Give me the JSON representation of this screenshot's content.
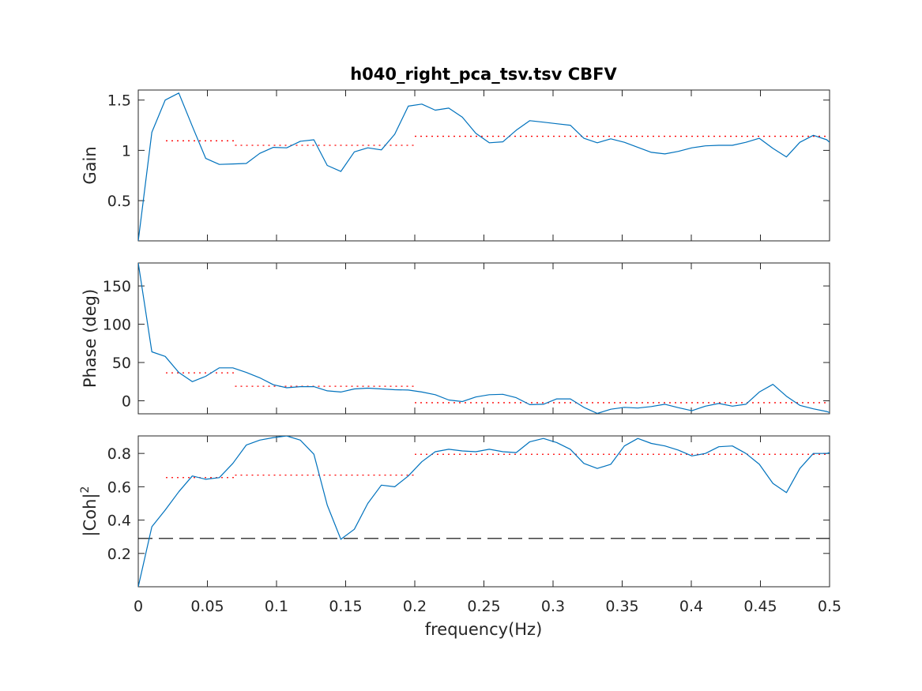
{
  "figure": {
    "title": "h040_right_pca_tsv.tsv CBFV",
    "xlabel": "frequency(Hz)",
    "x_ticks": [
      "0",
      "0.05",
      "0.1",
      "0.15",
      "0.2",
      "0.25",
      "0.3",
      "0.35",
      "0.4",
      "0.45",
      "0.5"
    ],
    "colors": {
      "series": "#0072BD",
      "band_mean": "#FF0000",
      "threshold": "#000000"
    }
  },
  "chart_data": [
    {
      "type": "line",
      "name": "gain",
      "ylabel": "Gain",
      "xlim": [
        0,
        0.5
      ],
      "ylim": [
        0.1,
        1.6
      ],
      "y_ticks": [
        0.5,
        1,
        1.5
      ],
      "y_tick_labels": [
        "0.5",
        "1",
        "1.5"
      ],
      "x": [
        0,
        0.0098,
        0.0195,
        0.0293,
        0.0391,
        0.0488,
        0.0586,
        0.0684,
        0.0781,
        0.0879,
        0.0977,
        0.1074,
        0.1172,
        0.127,
        0.1367,
        0.1465,
        0.1563,
        0.166,
        0.1758,
        0.1855,
        0.1953,
        0.2051,
        0.2148,
        0.2246,
        0.2344,
        0.2441,
        0.2539,
        0.2637,
        0.2734,
        0.2832,
        0.293,
        0.3027,
        0.3125,
        0.3223,
        0.332,
        0.3418,
        0.3516,
        0.3613,
        0.3711,
        0.3809,
        0.3906,
        0.4004,
        0.4102,
        0.4199,
        0.4297,
        0.4395,
        0.4492,
        0.459,
        0.4688,
        0.4785,
        0.4883,
        0.498,
        0.5
      ],
      "y": [
        0.1,
        1.18,
        1.5,
        1.57,
        1.24,
        0.92,
        0.86,
        0.865,
        0.87,
        0.97,
        1.03,
        1.025,
        1.09,
        1.105,
        0.85,
        0.79,
        0.985,
        1.025,
        1.005,
        1.16,
        1.44,
        1.46,
        1.4,
        1.42,
        1.33,
        1.17,
        1.075,
        1.085,
        1.2,
        1.295,
        1.28,
        1.265,
        1.25,
        1.12,
        1.075,
        1.115,
        1.08,
        1.03,
        0.98,
        0.965,
        0.99,
        1.025,
        1.045,
        1.05,
        1.05,
        1.08,
        1.12,
        1.02,
        0.935,
        1.08,
        1.15,
        1.105,
        1.08
      ],
      "bands": [
        {
          "x": [
            0.02,
            0.07
          ],
          "value": 1.095
        },
        {
          "x": [
            0.07,
            0.2
          ],
          "value": 1.05
        },
        {
          "x": [
            0.2,
            0.5
          ],
          "value": 1.14
        }
      ]
    },
    {
      "type": "line",
      "name": "phase",
      "ylabel": "Phase (deg)",
      "xlim": [
        0,
        0.5
      ],
      "ylim": [
        -17,
        180
      ],
      "y_ticks": [
        0,
        50,
        100,
        150
      ],
      "y_tick_labels": [
        "0",
        "50",
        "100",
        "150"
      ],
      "x": [
        0,
        0.0098,
        0.0195,
        0.0293,
        0.0391,
        0.0488,
        0.0586,
        0.0684,
        0.0781,
        0.0879,
        0.0977,
        0.1074,
        0.1172,
        0.127,
        0.1367,
        0.1465,
        0.1563,
        0.166,
        0.1758,
        0.1855,
        0.1953,
        0.2051,
        0.2148,
        0.2246,
        0.2344,
        0.2441,
        0.2539,
        0.2637,
        0.2734,
        0.2832,
        0.293,
        0.3027,
        0.3125,
        0.3223,
        0.332,
        0.3418,
        0.3516,
        0.3613,
        0.3711,
        0.3809,
        0.3906,
        0.4004,
        0.4102,
        0.4199,
        0.4297,
        0.4395,
        0.4492,
        0.459,
        0.4688,
        0.4785,
        0.4883,
        0.498,
        0.5
      ],
      "y": [
        180,
        64,
        58,
        37,
        25,
        32,
        43,
        43,
        37,
        30,
        21,
        17,
        18.5,
        18.5,
        13,
        11.5,
        15.5,
        16.5,
        15.5,
        14.5,
        14,
        11.5,
        8,
        1,
        -1,
        5,
        8,
        8.5,
        4,
        -5,
        -4.5,
        2.5,
        2.5,
        -8.5,
        -16.5,
        -11,
        -8.5,
        -9.5,
        -7.5,
        -4.5,
        -9,
        -13,
        -7,
        -3.5,
        -7,
        -4.5,
        11.5,
        21.5,
        6,
        -6,
        -10.5,
        -14,
        -15.5
      ],
      "bands": [
        {
          "x": [
            0.02,
            0.07
          ],
          "value": 36.5
        },
        {
          "x": [
            0.07,
            0.2
          ],
          "value": 19
        },
        {
          "x": [
            0.2,
            0.5
          ],
          "value": -2.5
        }
      ]
    },
    {
      "type": "line",
      "name": "coherence",
      "ylabel": "|Coh|",
      "ylabel_superscript": "2",
      "xlim": [
        0,
        0.5
      ],
      "ylim": [
        0,
        0.905
      ],
      "y_ticks": [
        0.2,
        0.4,
        0.6,
        0.8
      ],
      "y_tick_labels": [
        "0.2",
        "0.4",
        "0.6",
        "0.8"
      ],
      "x": [
        0,
        0.0098,
        0.0195,
        0.0293,
        0.0391,
        0.0488,
        0.0586,
        0.0684,
        0.0781,
        0.0879,
        0.0977,
        0.1074,
        0.1172,
        0.127,
        0.1367,
        0.1465,
        0.1563,
        0.166,
        0.1758,
        0.1855,
        0.1953,
        0.2051,
        0.2148,
        0.2246,
        0.2344,
        0.2441,
        0.2539,
        0.2637,
        0.2734,
        0.2832,
        0.293,
        0.3027,
        0.3125,
        0.3223,
        0.332,
        0.3418,
        0.3516,
        0.3613,
        0.3711,
        0.3809,
        0.3906,
        0.4004,
        0.4102,
        0.4199,
        0.4297,
        0.4395,
        0.4492,
        0.459,
        0.4688,
        0.4785,
        0.4883,
        0.498,
        0.5
      ],
      "y": [
        0,
        0.36,
        0.46,
        0.57,
        0.665,
        0.645,
        0.655,
        0.74,
        0.85,
        0.88,
        0.895,
        0.905,
        0.88,
        0.795,
        0.49,
        0.285,
        0.345,
        0.5,
        0.61,
        0.6,
        0.665,
        0.75,
        0.81,
        0.825,
        0.815,
        0.81,
        0.825,
        0.81,
        0.805,
        0.87,
        0.89,
        0.865,
        0.825,
        0.74,
        0.71,
        0.735,
        0.845,
        0.89,
        0.86,
        0.845,
        0.82,
        0.785,
        0.8,
        0.84,
        0.845,
        0.8,
        0.735,
        0.62,
        0.565,
        0.71,
        0.8,
        0.8,
        0.805
      ],
      "bands": [
        {
          "x": [
            0.02,
            0.07
          ],
          "value": 0.655
        },
        {
          "x": [
            0.07,
            0.2
          ],
          "value": 0.67
        },
        {
          "x": [
            0.2,
            0.5
          ],
          "value": 0.795
        }
      ],
      "threshold": 0.29
    }
  ]
}
